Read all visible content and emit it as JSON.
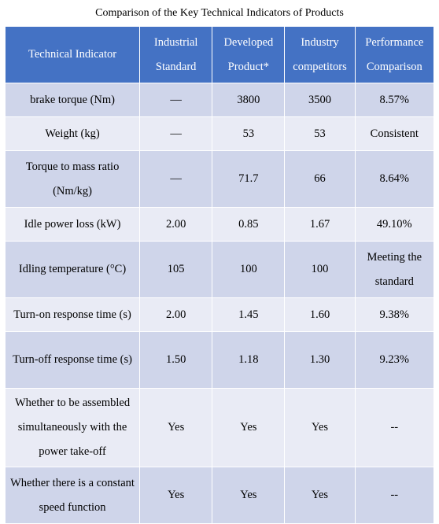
{
  "caption": "Comparison of the Key Technical Indicators of Products",
  "headers": [
    "Technical Indicator",
    "Industrial Standard",
    "Developed Product*",
    "Industry competitors",
    "Performance Comparison"
  ],
  "rows": [
    [
      "brake torque (Nm)",
      "—",
      "3800",
      "3500",
      "8.57%"
    ],
    [
      "Weight (kg)",
      "—",
      "53",
      "53",
      "Consistent"
    ],
    [
      "Torque to mass ratio (Nm/kg)",
      "—",
      "71.7",
      "66",
      "8.64%"
    ],
    [
      "Idle power loss (kW)",
      "2.00",
      "0.85",
      "1.67",
      "49.10%"
    ],
    [
      "Idling temperature (°C)",
      "105",
      "100",
      "100",
      "Meeting the standard"
    ],
    [
      "Turn-on response time (s)",
      "2.00",
      "1.45",
      "1.60",
      "9.38%"
    ],
    [
      "Turn-off response time (s)",
      "1.50",
      "1.18",
      "1.30",
      "9.23%"
    ],
    [
      "Whether to be assembled simultaneously with the power take-off",
      "Yes",
      "Yes",
      "Yes",
      "--"
    ],
    [
      "Whether there is a constant speed function",
      "Yes",
      "Yes",
      "Yes",
      "--"
    ]
  ],
  "colors": {
    "header_bg": "#4472c4",
    "row_dark": "#cfd5ea",
    "row_light": "#e9ebf5"
  }
}
